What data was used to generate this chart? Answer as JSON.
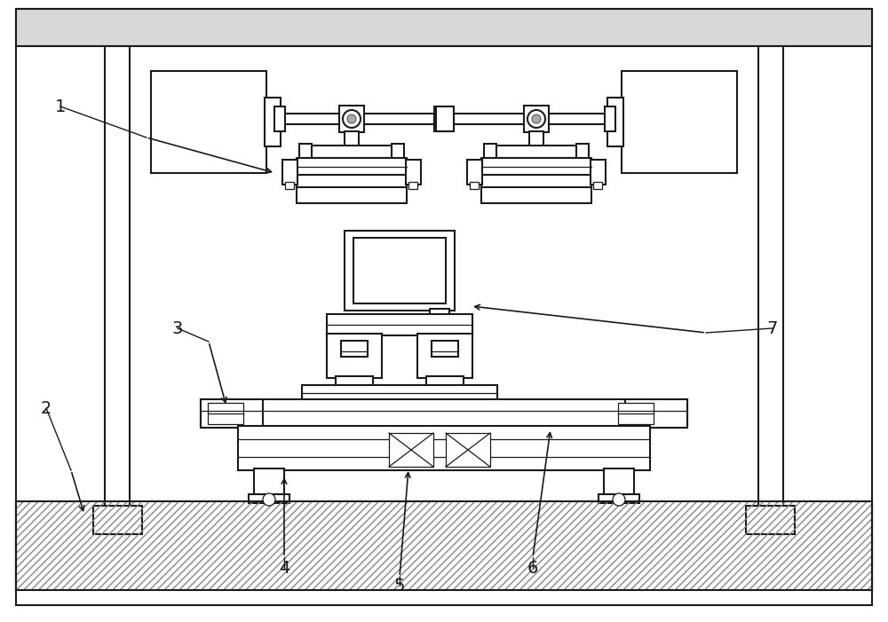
{
  "bg_color": "#ffffff",
  "line_color": "#1a1a1a",
  "hatch_color": "#666666",
  "label_color": "#000000",
  "line_width": 1.5,
  "thin_line": 0.9,
  "annotation_fontsize": 14,
  "fig_width": 10.0,
  "fig_height": 7.01
}
